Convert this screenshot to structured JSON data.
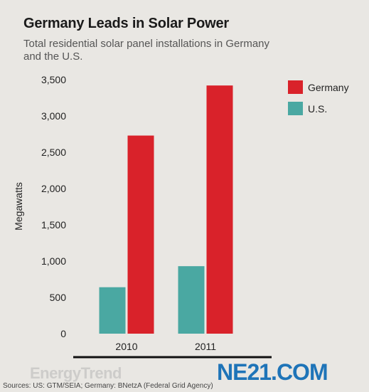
{
  "header": {
    "title": "Germany Leads in Solar Power",
    "subtitle": "Total residential solar panel installations in Germany and the U.S."
  },
  "footer": {
    "source": "Sources: US: GTM/SEIA; Germany: BNetzA (Federal Grid Agency)"
  },
  "watermarks": {
    "left": "EnergyTrend",
    "right": "NE21.COM"
  },
  "chart_data": {
    "type": "bar",
    "categories": [
      "2010",
      "2011"
    ],
    "series": [
      {
        "name": "U.S.",
        "color": "#4aa8a2",
        "values": [
          640,
          930
        ]
      },
      {
        "name": "Germany",
        "color": "#d9222a",
        "values": [
          2730,
          3420
        ]
      }
    ],
    "ylabel": "Megawatts",
    "ylim": [
      0,
      3500
    ],
    "yticks": [
      0,
      500,
      1000,
      1500,
      2000,
      2500,
      3000,
      3500
    ],
    "ytick_labels": [
      "0",
      "500",
      "1,000",
      "1,500",
      "2,000",
      "2,500",
      "3,000",
      "3,500"
    ],
    "legend": [
      {
        "name": "Germany",
        "color": "#d9222a"
      },
      {
        "name": "U.S.",
        "color": "#4aa8a2"
      }
    ],
    "legend_position": "top-right",
    "grid": false
  }
}
